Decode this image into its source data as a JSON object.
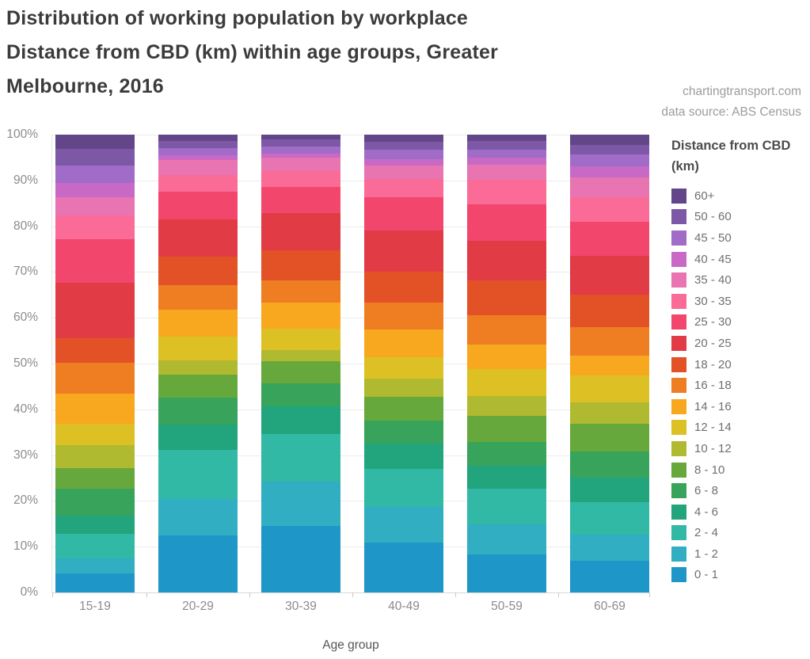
{
  "header": {
    "title_lines": [
      "Distribution of working population by workplace",
      "Distance from CBD (km) within age groups, Greater",
      "Melbourne, 2016"
    ],
    "credit_lines": [
      "chartingtransport.com",
      "data source: ABS Census"
    ]
  },
  "chart_data": {
    "type": "bar",
    "subtype": "stacked-100-percent",
    "title": "Distribution of working population by workplace Distance from CBD (km) within age groups, Greater Melbourne, 2016",
    "xlabel": "Age group",
    "ylabel": "",
    "ylim": [
      0,
      100
    ],
    "grid": true,
    "y_ticks": [
      "100%",
      "90%",
      "80%",
      "70%",
      "60%",
      "50%",
      "40%",
      "30%",
      "20%",
      "10%",
      "0%"
    ],
    "legend_title_lines": [
      "Distance from CBD",
      "(km)"
    ],
    "legend_position": "right",
    "categories": [
      "15-19",
      "20-29",
      "30-39",
      "40-49",
      "50-59",
      "60-69"
    ],
    "units": "percent of age group",
    "series": [
      {
        "name": "60+",
        "color": "#63458a",
        "values": [
          3.1,
          1.3,
          1.1,
          1.5,
          1.4,
          2.3
        ]
      },
      {
        "name": "50 - 60",
        "color": "#7d58a6",
        "values": [
          3.6,
          1.6,
          1.5,
          1.8,
          1.8,
          2.1
        ]
      },
      {
        "name": "45 - 50",
        "color": "#a06cc8",
        "values": [
          3.8,
          1.6,
          1.5,
          2.1,
          1.9,
          2.5
        ]
      },
      {
        "name": "40 - 45",
        "color": "#c869c5",
        "values": [
          3.1,
          1.1,
          1.0,
          1.3,
          1.5,
          2.5
        ]
      },
      {
        "name": "35 - 40",
        "color": "#e874b2",
        "values": [
          4.0,
          3.2,
          2.9,
          2.9,
          3.3,
          4.3
        ]
      },
      {
        "name": "30 - 35",
        "color": "#fa6b97",
        "values": [
          5.3,
          3.7,
          3.5,
          4.1,
          5.3,
          5.3
        ]
      },
      {
        "name": "25 - 30",
        "color": "#f3466c",
        "values": [
          9.4,
          6.0,
          5.7,
          7.3,
          7.9,
          7.5
        ]
      },
      {
        "name": "20 - 25",
        "color": "#e13b45",
        "values": [
          12.1,
          8.2,
          8.1,
          9.0,
          8.7,
          8.4
        ]
      },
      {
        "name": "18 - 20",
        "color": "#e35126",
        "values": [
          5.5,
          6.2,
          6.5,
          6.7,
          7.6,
          7.1
        ]
      },
      {
        "name": "16 - 18",
        "color": "#ef7d22",
        "values": [
          6.7,
          5.3,
          4.9,
          5.9,
          6.5,
          6.2
        ]
      },
      {
        "name": "14 - 16",
        "color": "#f7a81e",
        "values": [
          6.6,
          5.9,
          5.6,
          6.0,
          5.3,
          4.4
        ]
      },
      {
        "name": "12 - 14",
        "color": "#ddc024",
        "values": [
          4.7,
          5.2,
          4.8,
          4.6,
          5.9,
          5.8
        ]
      },
      {
        "name": "10 - 12",
        "color": "#b0ba30",
        "values": [
          5.0,
          3.1,
          2.4,
          4.1,
          4.4,
          4.8
        ]
      },
      {
        "name": "8 - 10",
        "color": "#67a83c",
        "values": [
          4.4,
          5.0,
          4.8,
          5.1,
          5.6,
          6.0
        ]
      },
      {
        "name": "6 - 8",
        "color": "#38a35a",
        "values": [
          5.9,
          5.9,
          5.1,
          5.1,
          5.2,
          5.7
        ]
      },
      {
        "name": "4 - 6",
        "color": "#22a47d",
        "values": [
          4.0,
          5.6,
          6.0,
          5.5,
          5.0,
          5.3
        ]
      },
      {
        "name": "2 - 4",
        "color": "#32b9a6",
        "values": [
          5.3,
          10.6,
          10.3,
          8.3,
          7.8,
          7.2
        ]
      },
      {
        "name": "1 - 2",
        "color": "#32aec3",
        "values": [
          3.4,
          8.0,
          9.8,
          7.8,
          6.6,
          5.6
        ]
      },
      {
        "name": "0 - 1",
        "color": "#1e97c8",
        "values": [
          4.1,
          12.5,
          14.5,
          10.9,
          8.3,
          7.0
        ]
      }
    ]
  }
}
